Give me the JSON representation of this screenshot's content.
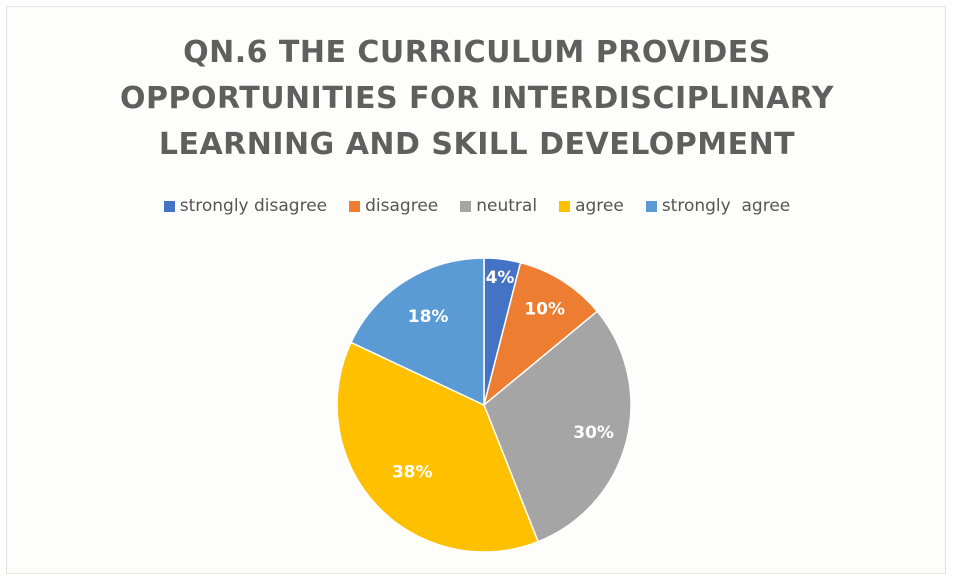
{
  "chart_data": {
    "type": "pie",
    "title": "QN.6 THE CURRICULUM PROVIDES OPPORTUNITIES FOR INTERDISCIPLINARY LEARNING AND SKILL DEVELOPMENT",
    "title_lines": [
      "QN.6 THE CURRICULUM PROVIDES",
      "OPPORTUNITIES FOR INTERDISCIPLINARY",
      "LEARNING AND SKILL DEVELOPMENT"
    ],
    "categories": [
      "strongly disagree",
      "disagree",
      "neutral",
      "agree",
      "strongly  agree"
    ],
    "values": [
      4,
      10,
      30,
      38,
      18
    ],
    "data_labels": [
      "4%",
      "10%",
      "30%",
      "38%",
      "18%"
    ],
    "colors": [
      "#4472c4",
      "#ed7d31",
      "#a5a5a5",
      "#ffc000",
      "#5b9bd5"
    ],
    "legend_position": "top"
  }
}
